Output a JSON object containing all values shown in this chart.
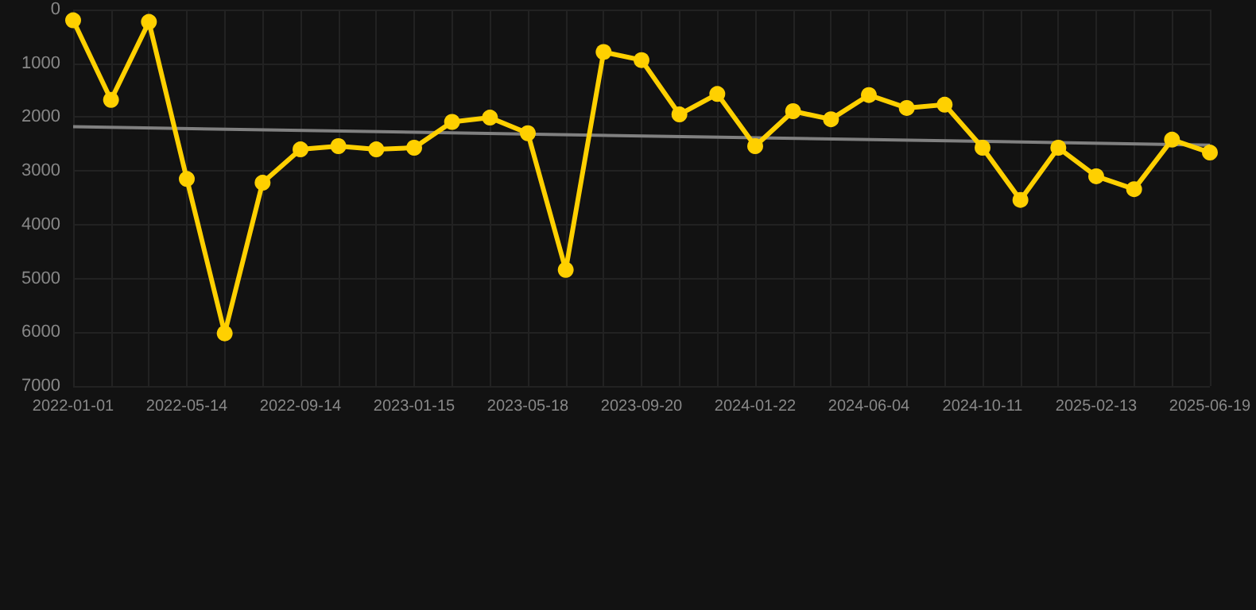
{
  "chart_data": {
    "type": "line",
    "categories": [
      "2022-01-01",
      null,
      null,
      "2022-05-14",
      null,
      null,
      "2022-09-14",
      null,
      null,
      "2023-01-15",
      null,
      null,
      "2023-05-18",
      null,
      null,
      "2023-09-20",
      null,
      null,
      "2024-01-22",
      null,
      null,
      "2024-06-04",
      null,
      null,
      "2024-10-11",
      null,
      null,
      "2025-02-13",
      null,
      null,
      "2025-06-19"
    ],
    "series": [
      {
        "color": "#ffd000",
        "marker": "circle",
        "values": [
          200,
          1680,
          230,
          3150,
          6020,
          3220,
          2600,
          2540,
          2600,
          2570,
          2090,
          2010,
          2300,
          4840,
          790,
          940,
          1950,
          1570,
          2540,
          1890,
          2040,
          1590,
          1830,
          1770,
          2570,
          3540,
          2570,
          3100,
          3340,
          2420,
          2660
        ]
      },
      {
        "type": "line",
        "color": "#808080",
        "marker": "none",
        "values": [
          2180,
          null,
          null,
          null,
          null,
          null,
          null,
          null,
          null,
          null,
          null,
          null,
          null,
          null,
          null,
          null,
          null,
          null,
          null,
          null,
          null,
          null,
          null,
          null,
          null,
          null,
          null,
          null,
          null,
          null,
          2520
        ]
      }
    ],
    "ylim": [
      7000,
      0
    ],
    "yticks": [
      0,
      1000,
      2000,
      3000,
      4000,
      5000,
      6000,
      7000
    ],
    "grid": true,
    "line_style": "solid"
  }
}
